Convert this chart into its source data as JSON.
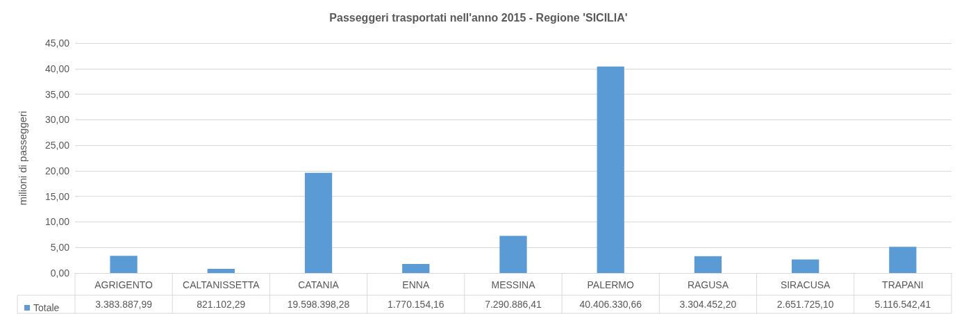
{
  "chart_data": {
    "type": "bar",
    "title": "Passeggeri trasportati nell'anno 2015 - Regione 'SICILIA'",
    "ylabel": "milioni di passeggeri",
    "categories": [
      "AGRIGENTO",
      "CALTANISSETTA",
      "CATANIA",
      "ENNA",
      "MESSINA",
      "PALERMO",
      "RAGUSA",
      "SIRACUSA",
      "TRAPANI"
    ],
    "series": [
      {
        "name": "Totale",
        "color": "#5b9bd5",
        "values": [
          3.38,
          0.82,
          19.6,
          1.77,
          7.29,
          40.41,
          3.3,
          2.65,
          5.12
        ]
      }
    ],
    "annotations": [
      "3.383.887,99",
      "821.102,29",
      "19.598.398,28",
      "1.770.154,16",
      "7.290.886,41",
      "40.406.330,66",
      "3.304.452,20",
      "2.651.725,10",
      "5.116.542,41"
    ],
    "ylim": [
      0,
      45
    ],
    "yticks": [
      {
        "value": 0,
        "label": "0,00"
      },
      {
        "value": 5,
        "label": "5,00"
      },
      {
        "value": 10,
        "label": "10,00"
      },
      {
        "value": 15,
        "label": "15,00"
      },
      {
        "value": 20,
        "label": "20,00"
      },
      {
        "value": 25,
        "label": "25,00"
      },
      {
        "value": 30,
        "label": "30,00"
      },
      {
        "value": 35,
        "label": "35,00"
      },
      {
        "value": 40,
        "label": "40,00"
      },
      {
        "value": 45,
        "label": "45,00"
      }
    ],
    "grid": "y",
    "legend": "bottom left"
  }
}
